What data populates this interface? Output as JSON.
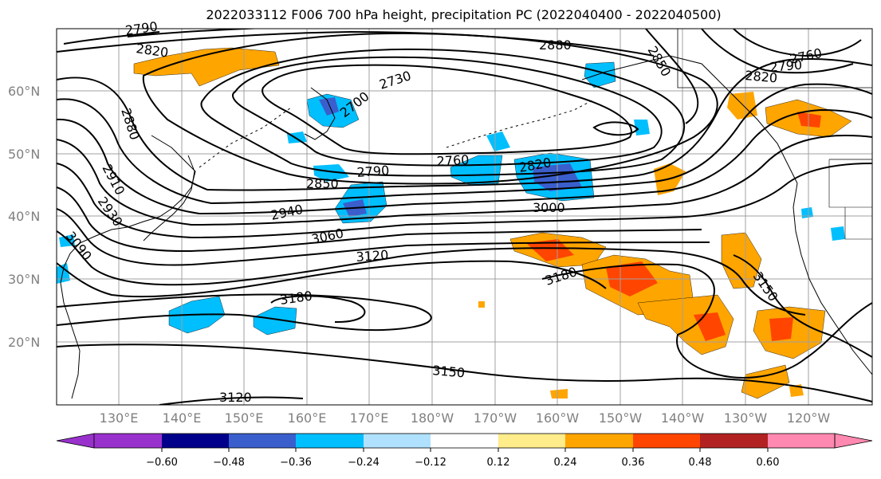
{
  "title": "2022033112 F006 700 hPa height, precipitation PC (2022040400 - 2022040500)",
  "map": {
    "lat_labels": [
      "60°N",
      "50°N",
      "40°N",
      "30°N",
      "20°N"
    ],
    "lon_labels": [
      "130°E",
      "140°E",
      "150°E",
      "160°E",
      "170°E",
      "180°W",
      "170°W",
      "160°W",
      "150°W",
      "140°W",
      "130°W",
      "120°W"
    ],
    "contour_labels": [
      "2790",
      "2820",
      "2880",
      "2850",
      "2790",
      "2760",
      "2820",
      "2730",
      "2700",
      "2880",
      "2910",
      "2930",
      "3090",
      "2790",
      "2850",
      "2760",
      "2820",
      "3000",
      "2940",
      "3060",
      "3120",
      "3180",
      "3180",
      "3150",
      "3150",
      "3120"
    ],
    "colors": {
      "line": "#000000",
      "coast": "#000000",
      "grid": "#a0a0a0",
      "lat_label": "#808080",
      "lon_label": "#808080"
    }
  },
  "colorbar": {
    "tick_labels": [
      "−0.60",
      "−0.48",
      "−0.36",
      "−0.24",
      "−0.12",
      "0.12",
      "0.24",
      "0.36",
      "0.48",
      "0.60"
    ],
    "colors": [
      "#9932cc",
      "#00008b",
      "#3a5fcd",
      "#00bfff",
      "#b0e2ff",
      "#ffffff",
      "#ffec8b",
      "#ffa500",
      "#ff4500",
      "#b22222",
      "#ff89b0"
    ]
  }
}
